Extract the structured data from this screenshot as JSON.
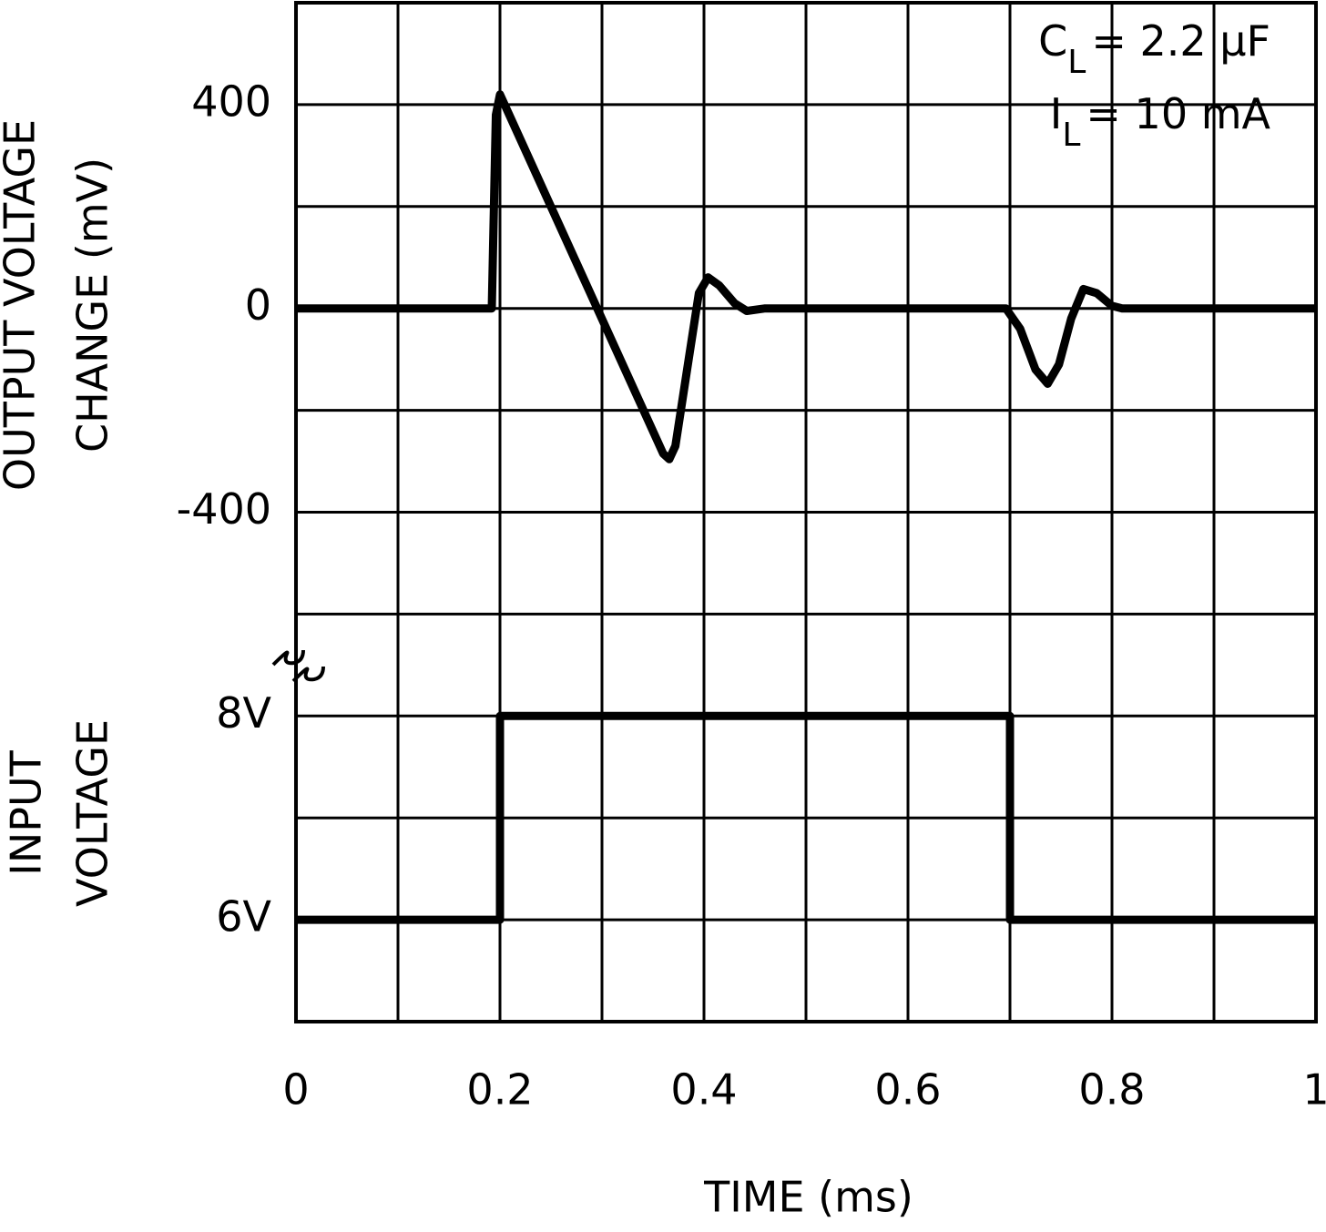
{
  "chart_data": [
    {
      "type": "line",
      "ylabel": [
        "OUTPUT VOLTAGE",
        "CHANGE (mV)"
      ],
      "xlabel": "TIME (ms)",
      "annotations": [
        {
          "text": "C",
          "sub": "L",
          "rest": "= 2.2 μF"
        },
        {
          "text": "I",
          "sub": "L",
          "rest": "= 10 mA"
        }
      ],
      "xlim": [
        0,
        1
      ],
      "xticks": [
        0,
        0.2,
        0.4,
        0.6,
        0.8,
        1
      ],
      "ylim": [
        -1400,
        600
      ],
      "yticks": [
        -400,
        0,
        400
      ],
      "xgrid": [
        0,
        0.1,
        0.2,
        0.3,
        0.4,
        0.5,
        0.6,
        0.7,
        0.8,
        0.9,
        1
      ],
      "ygrid": [
        -1400,
        -1200,
        -1000,
        -800,
        -600,
        -400,
        -200,
        0,
        200,
        400,
        600
      ],
      "color": "#000000",
      "x": [
        0,
        0.192,
        0.196,
        0.2,
        0.36,
        0.366,
        0.372,
        0.385,
        0.395,
        0.404,
        0.415,
        0.43,
        0.442,
        0.46,
        0.696,
        0.71,
        0.725,
        0.737,
        0.748,
        0.76,
        0.772,
        0.785,
        0.8,
        0.81,
        1
      ],
      "values": [
        0,
        0,
        380,
        420,
        -285,
        -296,
        -270,
        -100,
        30,
        61,
        45,
        10,
        -5,
        0,
        0,
        -40,
        -120,
        -148,
        -110,
        -20,
        38,
        30,
        5,
        0,
        0
      ]
    },
    {
      "type": "line",
      "ylabel": [
        "INPUT",
        "VOLTAGE"
      ],
      "xlim": [
        0,
        1
      ],
      "ylim": [
        5,
        15
      ],
      "yticks": [
        {
          "value": 6,
          "label": "6V"
        },
        {
          "value": 8,
          "label": "8V"
        }
      ],
      "color": "#000000",
      "x": [
        0,
        0.2,
        0.2,
        0.7,
        0.7,
        1
      ],
      "values": [
        6,
        6,
        8,
        8,
        6,
        6
      ]
    }
  ]
}
